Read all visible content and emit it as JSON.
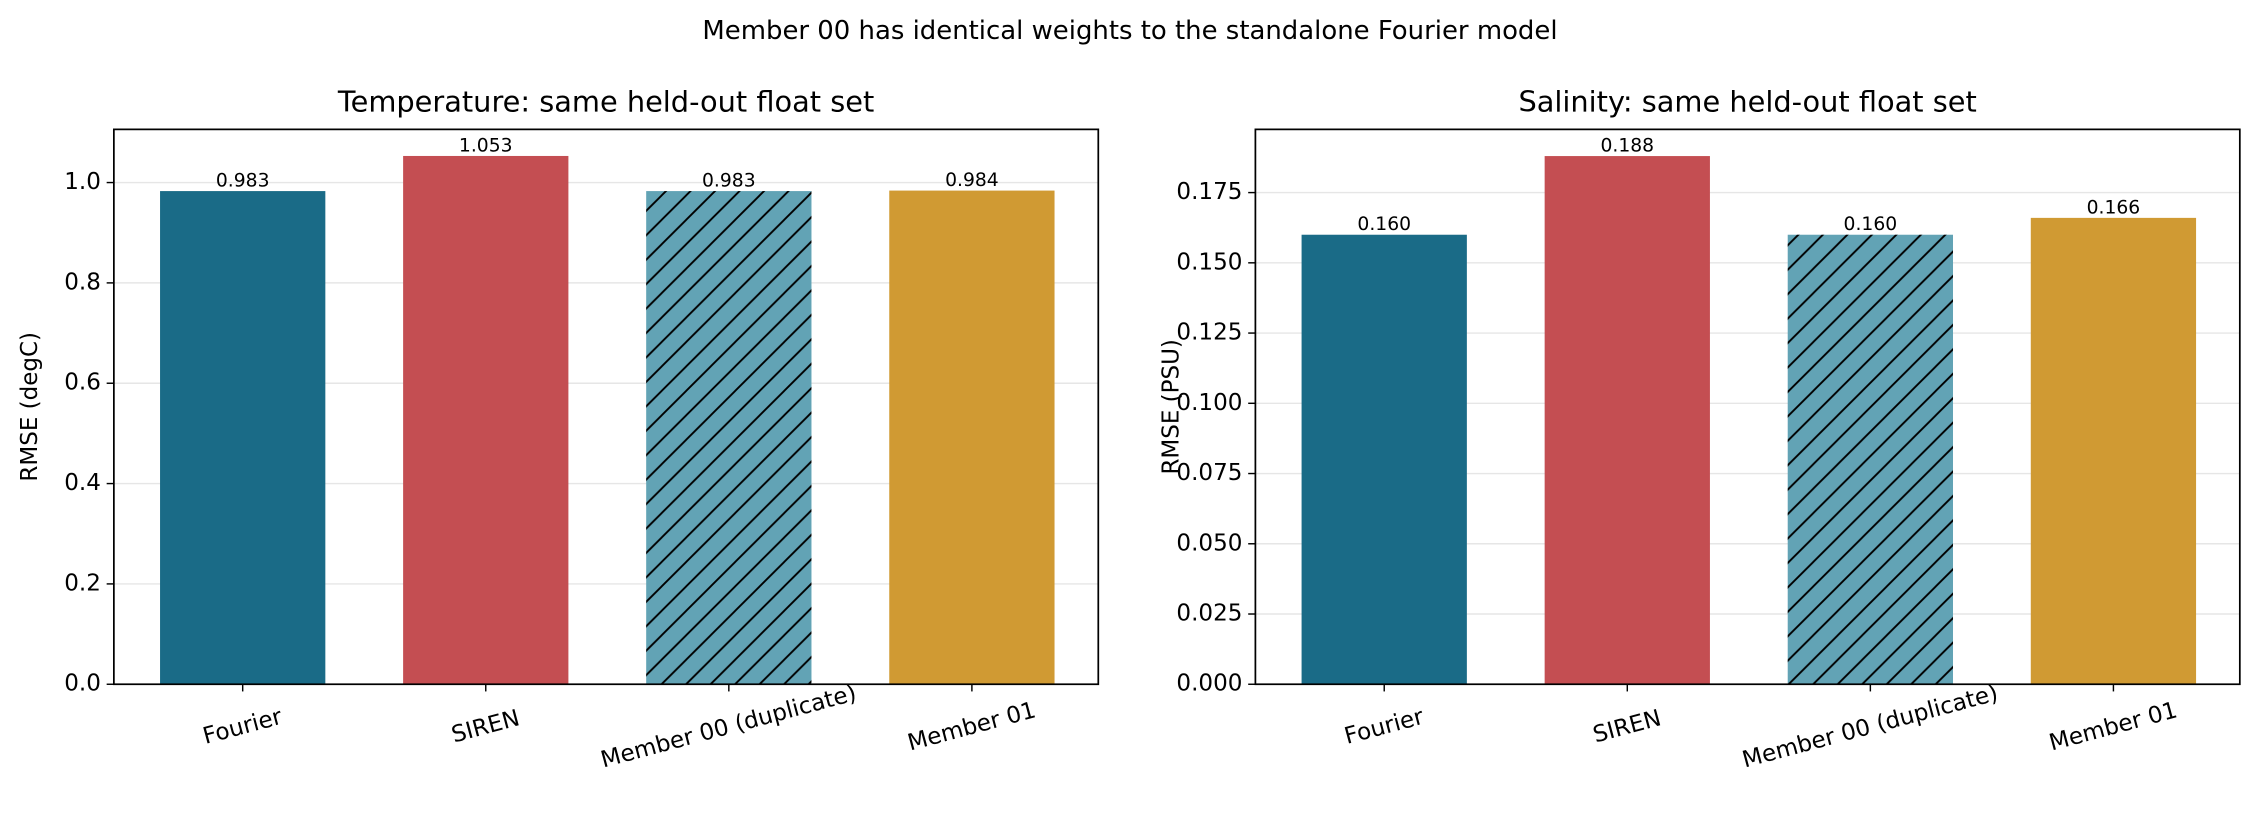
{
  "title": "Member 00 has identical weights to the standalone Fourier model",
  "chart_data": [
    {
      "type": "bar",
      "title": "Temperature: same held-out float set",
      "y_label": "RMSE (degC)",
      "categories": [
        "Fourier",
        "SIREN",
        "Member 00 (duplicate)",
        "Member 01"
      ],
      "values": [
        0.983,
        1.053,
        0.983,
        0.984
      ],
      "colors": [
        "#1a6b87",
        "#c44e52",
        "#62a3b5",
        "#d09a33"
      ],
      "hatched": [
        false,
        false,
        true,
        false
      ],
      "ylim": [
        0,
        1.106
      ],
      "yticks": [
        {
          "value": 0,
          "label": "0.0"
        },
        {
          "value": 0.2,
          "label": "0.2"
        },
        {
          "value": 0.4,
          "label": "0.4"
        },
        {
          "value": 0.6,
          "label": "0.6"
        },
        {
          "value": 0.8,
          "label": "0.8"
        },
        {
          "value": 1,
          "label": "1.0"
        }
      ],
      "grid": true
    },
    {
      "type": "bar",
      "title": "Salinity: same held-out float set",
      "y_label": "RMSE (PSU)",
      "categories": [
        "Fourier",
        "SIREN",
        "Member 00 (duplicate)",
        "Member 01"
      ],
      "values": [
        0.16,
        0.188,
        0.16,
        0.166
      ],
      "value_labels": [
        "0.160",
        "0.188",
        "0.160",
        "0.166"
      ],
      "colors": [
        "#1a6b87",
        "#c44e52",
        "#62a3b5",
        "#d09a33"
      ],
      "hatched": [
        false,
        false,
        true,
        false
      ],
      "ylim": [
        0,
        0.1975
      ],
      "yticks": [
        {
          "value": 0,
          "label": "0.000"
        },
        {
          "value": 0.025,
          "label": "0.025"
        },
        {
          "value": 0.05,
          "label": "0.050"
        },
        {
          "value": 0.075,
          "label": "0.075"
        },
        {
          "value": 0.1,
          "label": "0.100"
        },
        {
          "value": 0.125,
          "label": "0.125"
        },
        {
          "value": 0.15,
          "label": "0.150"
        },
        {
          "value": 0.175,
          "label": "0.175"
        }
      ],
      "grid": true
    }
  ]
}
